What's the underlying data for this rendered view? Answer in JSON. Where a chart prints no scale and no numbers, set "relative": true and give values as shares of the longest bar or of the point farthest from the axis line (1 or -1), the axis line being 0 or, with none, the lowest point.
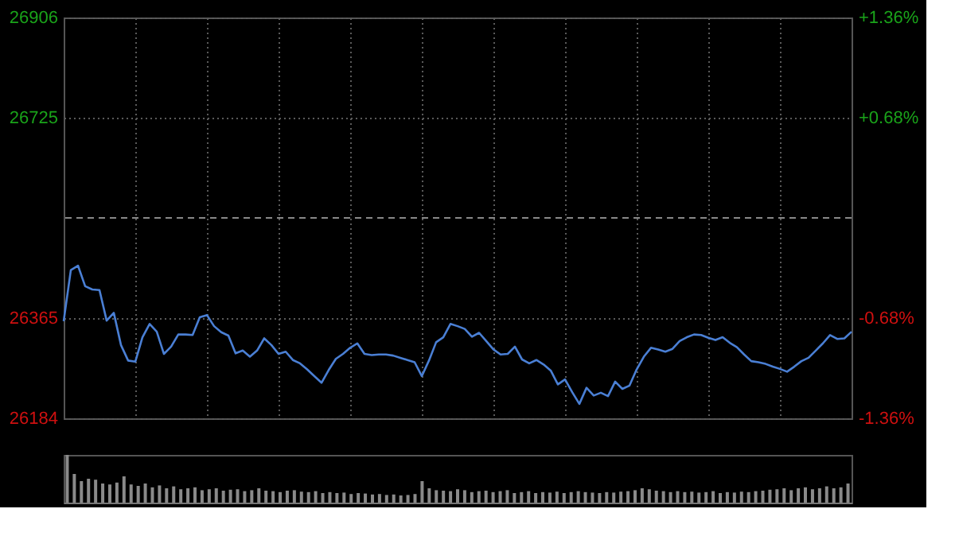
{
  "chart_data": [
    {
      "type": "line",
      "categories": [
        null,
        null,
        null,
        null,
        null,
        null,
        null,
        null,
        null,
        null,
        null,
        null,
        null,
        null,
        null,
        null,
        null,
        null,
        null,
        null,
        null,
        null,
        null,
        null,
        null,
        null,
        null,
        null,
        null,
        null,
        null,
        null,
        null,
        null,
        null,
        null,
        null,
        null,
        null,
        null,
        null,
        null,
        null,
        null,
        null,
        null,
        null,
        null,
        null,
        null,
        null,
        null,
        null,
        null,
        null,
        null,
        null,
        null,
        null,
        null,
        null,
        null,
        null,
        null,
        null,
        null,
        null,
        null,
        null,
        null,
        null,
        null,
        null,
        null,
        null,
        null,
        null,
        null,
        null,
        null,
        null,
        null,
        null,
        null,
        null,
        null,
        null,
        null,
        null,
        null,
        null,
        null,
        null,
        null,
        null,
        null,
        null,
        null,
        null,
        null,
        null,
        null,
        null,
        null,
        null,
        null,
        null,
        null,
        null,
        null,
        null
      ],
      "series": [
        {
          "color": "#4a7fd4",
          "values": [
            26359,
            26451,
            26459,
            26422,
            26416,
            26415,
            26360,
            26374,
            26316,
            26288,
            26286,
            26330,
            26354,
            26340,
            26300,
            26313,
            26335,
            26335,
            26334,
            26366,
            26370,
            26350,
            26339,
            26333,
            26301,
            26306,
            26295,
            26306,
            26328,
            26316,
            26300,
            26304,
            26289,
            26283,
            26272,
            26260,
            26248,
            26271,
            26291,
            26300,
            26311,
            26319,
            26300,
            26298,
            26299,
            26299,
            26297,
            26293,
            26289,
            26285,
            26260,
            26288,
            26321,
            26330,
            26354,
            26350,
            26345,
            26331,
            26338,
            26323,
            26308,
            26299,
            26300,
            26313,
            26290,
            26283,
            26289,
            26281,
            26270,
            26245,
            26254,
            26231,
            26210,
            26239,
            26225,
            26230,
            26224,
            26250,
            26237,
            26243,
            26272,
            26295,
            26311,
            26308,
            26304,
            26309,
            26323,
            26330,
            26335,
            26334,
            26329,
            26325,
            26330,
            26320,
            26312,
            26299,
            26287,
            26285,
            26282,
            26277,
            26273,
            26268,
            26277,
            26287,
            26293,
            26306,
            26319,
            26334,
            26327,
            26328,
            26340
          ]
        }
      ],
      "ylim": [
        26184,
        26906
      ],
      "yticks": [
        26184,
        26365,
        26725,
        26906
      ],
      "y2lim": [
        -1.36,
        1.36
      ],
      "y2ticks": [
        {
          "value": 1.36,
          "label": "+1.36%"
        },
        {
          "value": 0.68,
          "label": "+0.68%"
        },
        {
          "value": -0.68,
          "label": "-0.68%"
        },
        {
          "value": -1.36,
          "label": "-1.36%"
        }
      ],
      "ref_lines": [
        {
          "axis": "y",
          "value": 26545,
          "line_style": "dashed"
        }
      ],
      "grid": true,
      "tick_labels": "y"
    },
    {
      "type": "bar",
      "relative": true,
      "tick_labels": false,
      "categories": [
        null,
        null,
        null,
        null,
        null,
        null,
        null,
        null,
        null,
        null,
        null,
        null,
        null,
        null,
        null,
        null,
        null,
        null,
        null,
        null,
        null,
        null,
        null,
        null,
        null,
        null,
        null,
        null,
        null,
        null,
        null,
        null,
        null,
        null,
        null,
        null,
        null,
        null,
        null,
        null,
        null,
        null,
        null,
        null,
        null,
        null,
        null,
        null,
        null,
        null,
        null,
        null,
        null,
        null,
        null,
        null,
        null,
        null,
        null,
        null,
        null,
        null,
        null,
        null,
        null,
        null,
        null,
        null,
        null,
        null,
        null,
        null,
        null,
        null,
        null,
        null,
        null,
        null,
        null,
        null,
        null,
        null,
        null,
        null,
        null,
        null,
        null,
        null,
        null,
        null,
        null,
        null,
        null,
        null,
        null,
        null,
        null,
        null,
        null,
        null,
        null,
        null,
        null,
        null,
        null,
        null,
        null,
        null,
        null,
        null,
        null
      ],
      "series": [
        {
          "color": "#8a8a8a",
          "values": [
            1.0,
            0.6,
            0.45,
            0.5,
            0.48,
            0.4,
            0.38,
            0.42,
            0.55,
            0.38,
            0.35,
            0.4,
            0.32,
            0.36,
            0.3,
            0.34,
            0.28,
            0.3,
            0.32,
            0.26,
            0.28,
            0.3,
            0.25,
            0.27,
            0.28,
            0.24,
            0.26,
            0.3,
            0.25,
            0.24,
            0.22,
            0.25,
            0.26,
            0.23,
            0.22,
            0.24,
            0.2,
            0.22,
            0.2,
            0.21,
            0.18,
            0.2,
            0.19,
            0.17,
            0.18,
            0.16,
            0.17,
            0.15,
            0.16,
            0.18,
            0.45,
            0.3,
            0.26,
            0.25,
            0.24,
            0.28,
            0.26,
            0.22,
            0.24,
            0.25,
            0.22,
            0.24,
            0.26,
            0.2,
            0.22,
            0.24,
            0.2,
            0.22,
            0.21,
            0.23,
            0.2,
            0.22,
            0.24,
            0.22,
            0.21,
            0.2,
            0.22,
            0.21,
            0.23,
            0.24,
            0.26,
            0.3,
            0.28,
            0.25,
            0.24,
            0.22,
            0.24,
            0.22,
            0.23,
            0.21,
            0.22,
            0.24,
            0.2,
            0.22,
            0.21,
            0.23,
            0.22,
            0.24,
            0.25,
            0.27,
            0.28,
            0.3,
            0.26,
            0.3,
            0.32,
            0.28,
            0.3,
            0.34,
            0.3,
            0.32,
            0.4
          ]
        }
      ]
    }
  ]
}
